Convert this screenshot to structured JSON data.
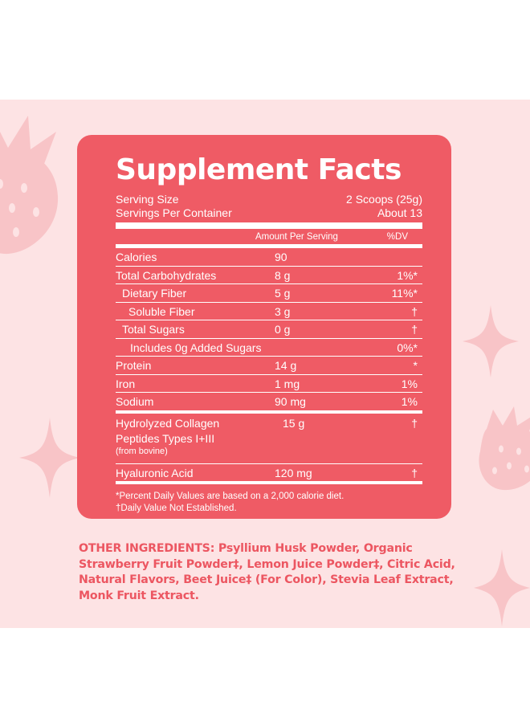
{
  "title": "Supplement Facts",
  "serving_size": {
    "label": "Serving Size",
    "value": "2 Scoops (25g)"
  },
  "servings_per_container": {
    "label": "Servings Per Container",
    "value": "About 13"
  },
  "header": {
    "amount": "Amount Per Serving",
    "dv": "%DV"
  },
  "rows": [
    {
      "name": "Calories",
      "amount": "90",
      "dv": "",
      "indent": 0
    },
    {
      "name": "Total Carbohydrates",
      "amount": "8 g",
      "dv": "1%*",
      "indent": 0
    },
    {
      "name": "Dietary Fiber",
      "amount": "5 g",
      "dv": "11%*",
      "indent": 1
    },
    {
      "name": "Soluble Fiber",
      "amount": "3 g",
      "dv": "†",
      "indent": 2
    },
    {
      "name": "Total Sugars",
      "amount": "0 g",
      "dv": "†",
      "indent": 1
    },
    {
      "name": "Includes 0g Added Sugars",
      "amount": "",
      "dv": "0%*",
      "indent": 3
    },
    {
      "name": "Protein",
      "amount": "14 g",
      "dv": "*",
      "indent": 0
    },
    {
      "name": "Iron",
      "amount": "1 mg",
      "dv": "1%",
      "indent": 0
    },
    {
      "name": "Sodium",
      "amount": "90 mg",
      "dv": "1%",
      "indent": 0
    }
  ],
  "collagen": {
    "line1": "Hydrolyzed Collagen",
    "line2": "Peptides Types I+III",
    "note": "(from bovine)",
    "amount": "15 g",
    "dv": "†"
  },
  "hyaluronic": {
    "name": "Hyaluronic Acid",
    "amount": "120 mg",
    "dv": "†"
  },
  "footnotes": {
    "percent": "*Percent Daily Values are based on a 2,000 calorie diet.",
    "dagger": "†Daily Value Not Established."
  },
  "other_ingredients": "OTHER INGREDIENTS: Psyllium Husk Powder, Organic Strawberry Fruit Powder‡, Lemon Juice Powder‡, Citric Acid, Natural Flavors, Beet Juice‡ (For Color), Stevia Leaf Extract, Monk Fruit Extract.",
  "colors": {
    "panel": "#ef5b65",
    "background": "#fde3e4",
    "deco": "#f8c4c7",
    "ingredients_text": "#ec5661"
  },
  "icons": [
    "strawberry-icon",
    "sparkle-icon"
  ]
}
